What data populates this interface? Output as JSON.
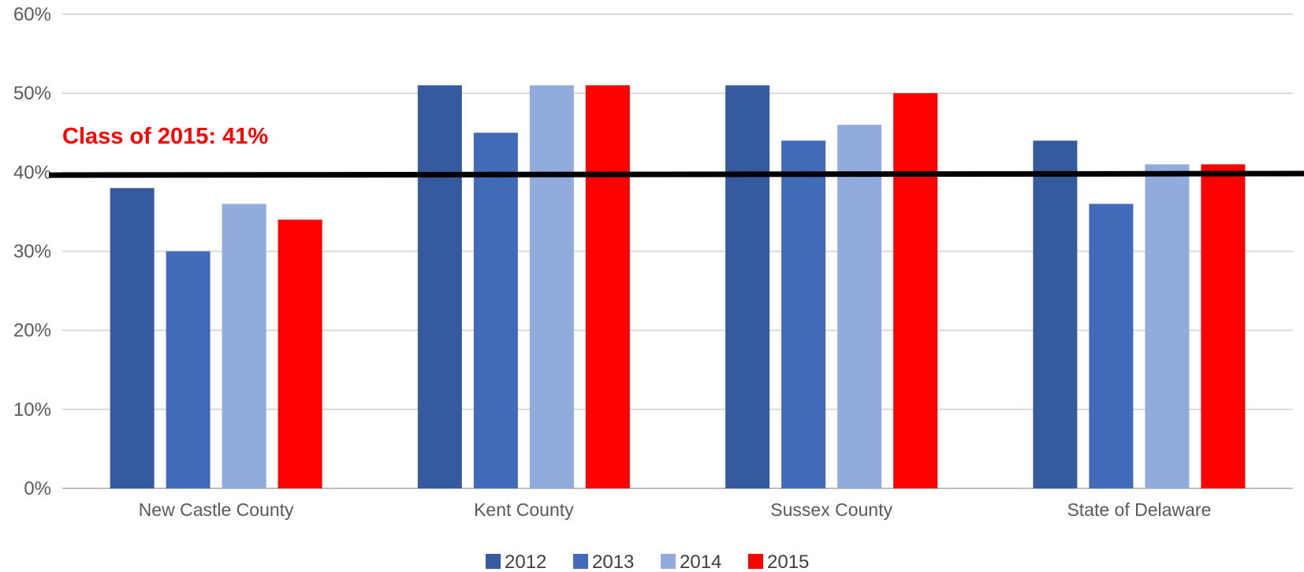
{
  "chart_data": {
    "type": "bar",
    "categories": [
      "New Castle County",
      "Kent County",
      "Sussex County",
      "State of Delaware"
    ],
    "series": [
      {
        "name": "2012",
        "color": "#365a9e",
        "values": [
          38,
          51,
          51,
          44
        ]
      },
      {
        "name": "2013",
        "color": "#416bb8",
        "values": [
          30,
          45,
          44,
          36
        ]
      },
      {
        "name": "2014",
        "color": "#91abdc",
        "values": [
          36,
          51,
          46,
          41
        ]
      },
      {
        "name": "2015",
        "color": "#ff0000",
        "values": [
          34,
          51,
          50,
          41
        ]
      }
    ],
    "ylim": [
      0,
      60
    ],
    "yticks": [
      0,
      10,
      20,
      30,
      40,
      50,
      60
    ],
    "ytick_labels": [
      "0%",
      "10%",
      "20%",
      "30%",
      "40%",
      "50%",
      "60%"
    ],
    "grid": true,
    "legend_position": "bottom",
    "reference_line": {
      "value": 41,
      "color": "#000000"
    },
    "annotation": {
      "text": "Class of 2015: 41%",
      "color": "#ff0000"
    }
  }
}
